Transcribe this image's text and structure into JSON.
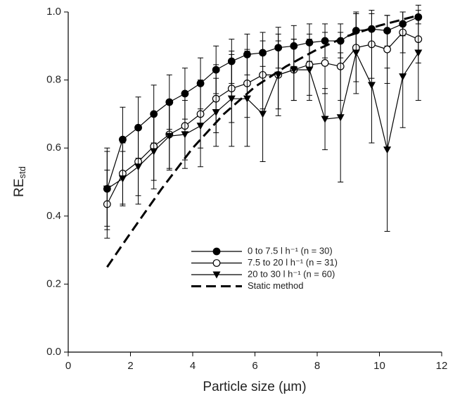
{
  "chart_data": {
    "type": "line",
    "xlabel": "Particle size (µm)",
    "ylabel": "RE",
    "ylabel_sub": "std",
    "xlim": [
      0,
      12
    ],
    "xticks": [
      0,
      2,
      4,
      6,
      8,
      10,
      12
    ],
    "ylim": [
      0,
      1
    ],
    "yticks": [
      {
        "value": 0,
        "label": "0.0"
      },
      0.2,
      0.4,
      0.6,
      0.8,
      {
        "value": 1,
        "label": "1.0"
      }
    ],
    "legend": "lower-center",
    "series": [
      {
        "name": "0 to 7.5 l h⁻¹ (n = 30)",
        "color": "#000000",
        "marker": "filled-circle",
        "x": [
          1.25,
          1.75,
          2.25,
          2.75,
          3.25,
          3.75,
          4.25,
          4.75,
          5.25,
          5.75,
          6.25,
          6.75,
          7.25,
          7.75,
          8.25,
          8.75,
          9.25,
          9.75,
          10.25,
          10.75,
          11.25
        ],
        "values": [
          0.48,
          0.625,
          0.66,
          0.7,
          0.735,
          0.76,
          0.79,
          0.83,
          0.855,
          0.875,
          0.88,
          0.895,
          0.9,
          0.91,
          0.915,
          0.915,
          0.945,
          0.95,
          0.945,
          0.965,
          0.985
        ],
        "errors": [
          0.11,
          0.095,
          0.09,
          0.085,
          0.08,
          0.075,
          0.075,
          0.07,
          0.065,
          0.06,
          0.06,
          0.06,
          0.06,
          0.055,
          0.05,
          0.05,
          0.05,
          0.045,
          0.045,
          0.035,
          0.02
        ]
      },
      {
        "name": "7.5 to 20 l h⁻¹ (n = 31)",
        "color": "#000000",
        "marker": "open-circle",
        "x": [
          1.25,
          1.75,
          2.25,
          2.75,
          3.25,
          3.75,
          4.25,
          4.75,
          5.25,
          5.75,
          6.25,
          6.75,
          7.25,
          7.75,
          8.25,
          8.75,
          9.25,
          9.75,
          10.25,
          10.75,
          11.25
        ],
        "values": [
          0.435,
          0.525,
          0.56,
          0.605,
          0.64,
          0.665,
          0.7,
          0.745,
          0.775,
          0.79,
          0.815,
          0.815,
          0.83,
          0.845,
          0.85,
          0.84,
          0.895,
          0.905,
          0.89,
          0.94,
          0.92
        ],
        "errors": [
          0.1,
          0.09,
          0.1,
          0.1,
          0.1,
          0.1,
          0.1,
          0.1,
          0.1,
          0.1,
          0.1,
          0.1,
          0.09,
          0.09,
          0.09,
          0.1,
          0.1,
          0.1,
          0.1,
          0.06,
          0.07
        ]
      },
      {
        "name": "20 to 30 l h⁻¹ (n = 60)",
        "color": "#000000",
        "marker": "triangle-down",
        "x": [
          1.25,
          1.75,
          2.25,
          2.75,
          3.25,
          3.75,
          4.25,
          4.75,
          5.25,
          5.75,
          6.25,
          6.75,
          7.25,
          7.75,
          8.25,
          8.75,
          9.25,
          9.75,
          10.25,
          10.75,
          11.25
        ],
        "values": [
          0.48,
          0.51,
          0.545,
          0.59,
          0.635,
          0.64,
          0.665,
          0.705,
          0.745,
          0.745,
          0.7,
          0.815,
          0.83,
          0.83,
          0.685,
          0.69,
          0.88,
          0.785,
          0.595,
          0.81,
          0.88
        ],
        "errors": [
          0.12,
          0.08,
          0.11,
          0.11,
          0.1,
          0.1,
          0.12,
          0.1,
          0.14,
          0.14,
          0.14,
          0.12,
          0.09,
          0.09,
          0.09,
          0.19,
          0.12,
          0.17,
          0.24,
          0.15,
          0.14
        ]
      },
      {
        "name": "Static method",
        "color": "#000000",
        "marker": "dashed",
        "x": [
          1.25,
          2,
          3,
          4,
          5,
          6,
          7,
          8,
          9,
          10,
          11.25
        ],
        "values": [
          0.25,
          0.35,
          0.48,
          0.6,
          0.7,
          0.78,
          0.84,
          0.89,
          0.93,
          0.96,
          0.99
        ]
      }
    ]
  }
}
